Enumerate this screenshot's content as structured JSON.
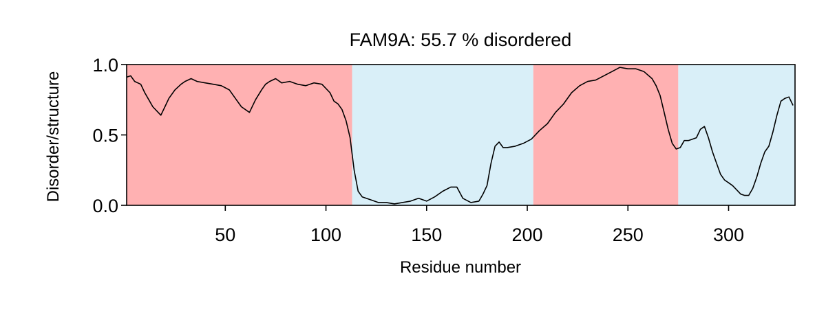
{
  "chart_data": {
    "type": "line",
    "title": "FAM9A: 55.7 % disordered",
    "xlabel": "Residue number",
    "ylabel": "Disorder/structure",
    "xlim": [
      1,
      333
    ],
    "ylim": [
      0,
      1
    ],
    "xticks": [
      50,
      100,
      150,
      200,
      250,
      300
    ],
    "xtick_labels": [
      "50",
      "100",
      "150",
      "200",
      "250",
      "300"
    ],
    "yticks": [
      0,
      0.5,
      1
    ],
    "ytick_labels": [
      "0.0",
      "0.5",
      "1.0"
    ],
    "grid": false,
    "regions": [
      {
        "start": 1,
        "end": 113,
        "kind": "disordered",
        "color": "#ffb1b2"
      },
      {
        "start": 113,
        "end": 203,
        "kind": "structured",
        "color": "#d9eff8"
      },
      {
        "start": 203,
        "end": 275,
        "kind": "disordered",
        "color": "#ffb1b2"
      },
      {
        "start": 275,
        "end": 333,
        "kind": "structured",
        "color": "#d9eff8"
      }
    ],
    "series": [
      {
        "color": "#000000",
        "x": [
          1,
          3,
          5,
          8,
          10,
          12,
          14,
          16,
          18,
          20,
          22,
          25,
          28,
          30,
          33,
          36,
          40,
          44,
          48,
          52,
          55,
          58,
          62,
          65,
          68,
          70,
          72,
          75,
          78,
          82,
          86,
          90,
          94,
          98,
          102,
          104,
          106,
          108,
          110,
          112,
          114,
          116,
          118,
          122,
          126,
          130,
          134,
          138,
          142,
          146,
          150,
          154,
          158,
          162,
          165,
          168,
          172,
          176,
          178,
          180,
          182,
          184,
          186,
          188,
          190,
          194,
          198,
          202,
          206,
          210,
          214,
          218,
          222,
          226,
          230,
          234,
          238,
          242,
          246,
          250,
          254,
          258,
          262,
          264,
          266,
          268,
          270,
          272,
          274,
          276,
          278,
          280,
          282,
          284,
          286,
          288,
          290,
          292,
          294,
          296,
          298,
          300,
          302,
          304,
          306,
          308,
          310,
          312,
          314,
          316,
          318,
          320,
          322,
          324,
          326,
          328,
          330,
          332
        ],
        "y": [
          0.91,
          0.92,
          0.88,
          0.86,
          0.8,
          0.75,
          0.7,
          0.67,
          0.64,
          0.7,
          0.76,
          0.82,
          0.86,
          0.88,
          0.9,
          0.88,
          0.87,
          0.86,
          0.85,
          0.82,
          0.76,
          0.7,
          0.66,
          0.75,
          0.82,
          0.86,
          0.88,
          0.9,
          0.87,
          0.88,
          0.86,
          0.85,
          0.87,
          0.86,
          0.8,
          0.74,
          0.72,
          0.68,
          0.6,
          0.48,
          0.25,
          0.1,
          0.06,
          0.04,
          0.02,
          0.02,
          0.01,
          0.02,
          0.03,
          0.05,
          0.03,
          0.06,
          0.1,
          0.13,
          0.13,
          0.05,
          0.02,
          0.03,
          0.08,
          0.14,
          0.3,
          0.42,
          0.45,
          0.41,
          0.41,
          0.42,
          0.44,
          0.47,
          0.53,
          0.58,
          0.66,
          0.72,
          0.8,
          0.85,
          0.88,
          0.89,
          0.92,
          0.95,
          0.98,
          0.97,
          0.97,
          0.95,
          0.9,
          0.85,
          0.78,
          0.66,
          0.54,
          0.44,
          0.4,
          0.41,
          0.46,
          0.46,
          0.47,
          0.48,
          0.54,
          0.56,
          0.48,
          0.38,
          0.3,
          0.22,
          0.18,
          0.16,
          0.14,
          0.11,
          0.08,
          0.07,
          0.07,
          0.12,
          0.2,
          0.3,
          0.38,
          0.42,
          0.52,
          0.64,
          0.74,
          0.76,
          0.77,
          0.71
        ]
      }
    ]
  }
}
